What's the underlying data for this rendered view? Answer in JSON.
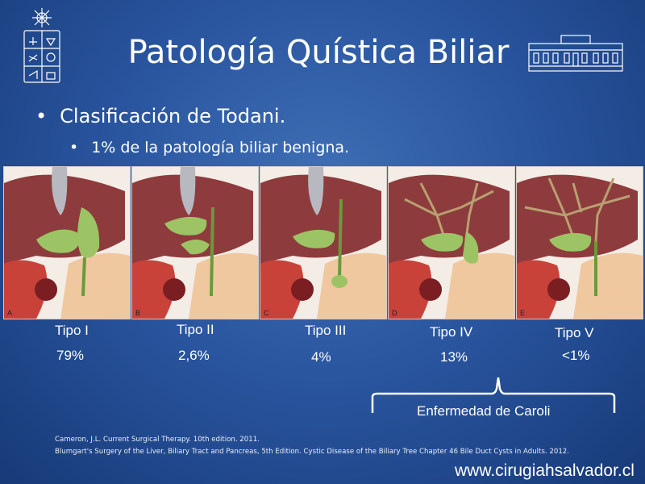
{
  "slide": {
    "title": "Patología Quística Biliar",
    "bullet1": "Clasificación de Todani.",
    "bullet2": "1% de la patología biliar benigna.",
    "bullet_symbol": "•"
  },
  "panels": [
    {
      "letter": "A",
      "tipo": "Tipo I",
      "percent": "79%"
    },
    {
      "letter": "B",
      "tipo": "Tipo II",
      "percent": "2,6%"
    },
    {
      "letter": "C",
      "tipo": "Tipo III",
      "percent": "4%"
    },
    {
      "letter": "D",
      "tipo": "Tipo IV",
      "percent": "13%"
    },
    {
      "letter": "E",
      "tipo": "Tipo V",
      "percent": "<1%"
    }
  ],
  "caroli_label": "Enfermedad de Caroli",
  "references": [
    "Cameron, J.L. Current Surgical Therapy. 10th edition. 2011.",
    "Blumgart's Surgery of the Liver, Biliary Tract and Pancreas, 5th Edition. Cystic Disease of the Biliary Tree Chapter 46 Bile Duct Cysts in Adults. 2012."
  ],
  "website": "www.cirugiahsalvador.cl",
  "colors": {
    "background": "#2a56a0",
    "liver": "#8e3b3e",
    "cyst": "#9cc464",
    "tissue": "#f0c8a0"
  }
}
